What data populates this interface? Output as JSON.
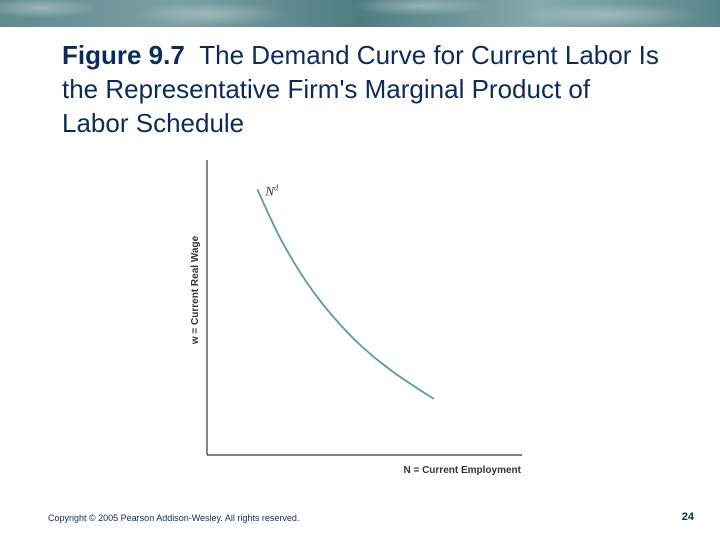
{
  "slide": {
    "title_figure": "Figure 9.7",
    "title_text": "The Demand Curve for Current Labor Is the Representative Firm's Marginal Product of Labor Schedule",
    "footer": "Copyright © 2005 Pearson Addison-Wesley. All rights reserved.",
    "page_number": "24"
  },
  "colors": {
    "title": "#0d2b5a",
    "curve": "#5a9aa8",
    "axis": "#333333"
  },
  "chart_data": {
    "type": "line",
    "title": "",
    "xlabel": "N = Current Employment",
    "ylabel": "w = Current Real Wage",
    "ticks": "none",
    "grid": false,
    "xlim": [
      0,
      10
    ],
    "ylim": [
      0,
      10
    ],
    "series": [
      {
        "name": "N^d",
        "x": [
          1.6,
          2.4,
          3.4,
          4.6,
          5.8,
          7.2
        ],
        "y": [
          9.0,
          7.2,
          5.5,
          4.0,
          2.9,
          1.9
        ]
      }
    ],
    "curve_label": {
      "base": "N",
      "sup": "d"
    }
  }
}
